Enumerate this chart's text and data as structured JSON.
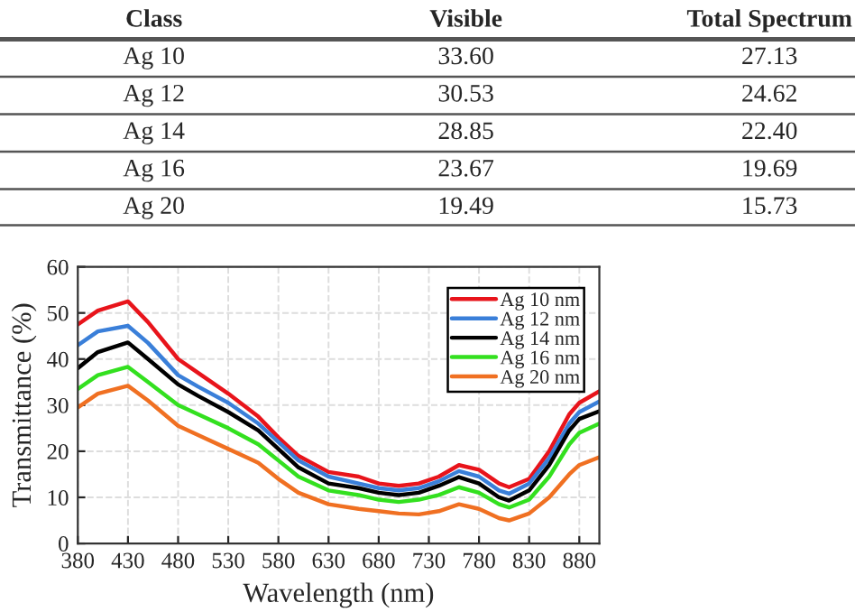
{
  "chart_data": [
    {
      "type": "other",
      "xlabel": "Class",
      "categories": [
        "Ag 10",
        "Ag 12",
        "Ag 14",
        "Ag 16",
        "Ag 20"
      ],
      "series": [
        {
          "name": "Visible",
          "values": [
            33.6,
            30.53,
            28.85,
            23.67,
            19.49
          ],
          "value_labels": [
            "33.60",
            "30.53",
            "28.85",
            "23.67",
            "19.49"
          ]
        },
        {
          "name": "Total Spectrum",
          "values": [
            27.13,
            24.62,
            22.4,
            19.69,
            15.73
          ],
          "value_labels": [
            "27.13",
            "24.62",
            "22.40",
            "19.69",
            "15.73"
          ]
        }
      ]
    },
    {
      "type": "line",
      "xlabel": "Wavelength (nm)",
      "ylabel": "Transmittance (%)",
      "x": [
        380,
        400,
        430,
        450,
        480,
        500,
        530,
        560,
        580,
        600,
        630,
        660,
        680,
        700,
        720,
        740,
        760,
        780,
        800,
        810,
        830,
        850,
        870,
        880,
        900
      ],
      "series": [
        {
          "name": "Ag 10 nm",
          "color": "#e8141b",
          "values": [
            47.5,
            50.5,
            52.5,
            48,
            40,
            37,
            32.5,
            27.5,
            23,
            19,
            15.5,
            14.5,
            13,
            12.5,
            13,
            14.5,
            17,
            16,
            13,
            12.2,
            14,
            20,
            28,
            30.5,
            33
          ]
        },
        {
          "name": "Ag 12 nm",
          "color": "#3a7fd9",
          "values": [
            43,
            46,
            47.2,
            43.5,
            36.5,
            34,
            30.5,
            26,
            22,
            18,
            14.5,
            13,
            12,
            11.5,
            12,
            13.5,
            15.7,
            14.5,
            11.5,
            10.8,
            13,
            18.5,
            26,
            28.5,
            30.8
          ]
        },
        {
          "name": "Ag 14 nm",
          "color": "#000000",
          "values": [
            38,
            41.5,
            43.6,
            40,
            34.5,
            32,
            28.5,
            24.5,
            20.5,
            16.5,
            13,
            12,
            11,
            10.5,
            11,
            12.5,
            14.4,
            13,
            10,
            9.3,
            11.5,
            17,
            24.5,
            27,
            28.7
          ]
        },
        {
          "name": "Ag 16 nm",
          "color": "#33e01f",
          "values": [
            33.5,
            36.5,
            38.3,
            35,
            30,
            28,
            25,
            21.5,
            18,
            14.5,
            11.5,
            10.5,
            9.5,
            9,
            9.5,
            10.5,
            12.2,
            11,
            8.5,
            7.8,
            9.5,
            14.5,
            21.5,
            24,
            26
          ]
        },
        {
          "name": "Ag 20 nm",
          "color": "#f07022",
          "values": [
            29.5,
            32.5,
            34.2,
            31,
            25.5,
            23.5,
            20.5,
            17.5,
            14,
            11,
            8.5,
            7.5,
            7,
            6.5,
            6.3,
            7,
            8.5,
            7.5,
            5.5,
            5,
            6.5,
            10,
            15,
            17,
            18.7
          ]
        }
      ],
      "xlim": [
        380,
        900
      ],
      "xticks": [
        380,
        430,
        480,
        530,
        580,
        630,
        680,
        730,
        780,
        830,
        880
      ],
      "ylim": [
        0,
        60
      ],
      "yticks": [
        0,
        10,
        20,
        30,
        40,
        50,
        60
      ],
      "grid": true,
      "legend": "top right",
      "line_style": "solid",
      "marker": "none"
    }
  ]
}
